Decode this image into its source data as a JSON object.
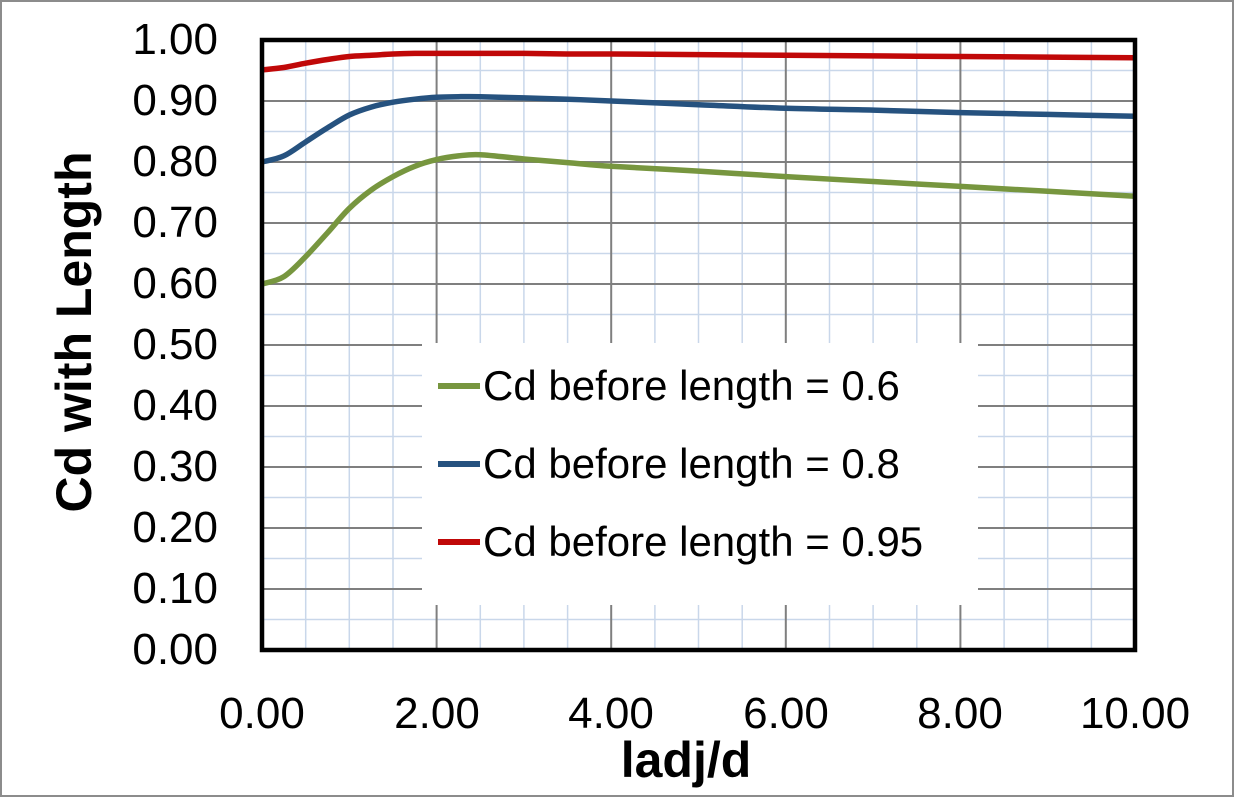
{
  "window": {
    "background": "#ffffff",
    "outer_border_color": "#8c8c8c"
  },
  "chart_data": {
    "type": "line",
    "title": "",
    "xlabel": "ladj/d",
    "ylabel": "Cd with Length",
    "xlim": [
      0,
      10
    ],
    "ylim": [
      0.0,
      1.0
    ],
    "x_major_step": 2.0,
    "x_minor_step": 0.5,
    "y_major_step": 0.1,
    "y_minor_step": 0.05,
    "x_tick_labels": [
      "0.00",
      "2.00",
      "4.00",
      "6.00",
      "8.00",
      "10.00"
    ],
    "y_tick_labels": [
      "0.00",
      "0.10",
      "0.20",
      "0.30",
      "0.40",
      "0.50",
      "0.60",
      "0.70",
      "0.80",
      "0.90",
      "1.00"
    ],
    "grid": {
      "major_color": "#7f7f7f",
      "minor_color": "#c9d7ea",
      "major_width": 2,
      "minor_width": 1.5
    },
    "plot_border_color": "#000000",
    "legend_position": "center",
    "legend_background": "#ffffff",
    "x": [
      0,
      0.25,
      0.5,
      0.75,
      1,
      1.25,
      1.5,
      1.75,
      2,
      2.25,
      2.5,
      3,
      3.5,
      4,
      5,
      6,
      7,
      8,
      9,
      10
    ],
    "series": [
      {
        "name": "Cd before length = 0.6",
        "color": "#77963f",
        "values": [
          0.6,
          0.612,
          0.645,
          0.684,
          0.724,
          0.754,
          0.776,
          0.793,
          0.804,
          0.81,
          0.812,
          0.805,
          0.799,
          0.793,
          0.785,
          0.776,
          0.768,
          0.76,
          0.752,
          0.744
        ]
      },
      {
        "name": "Cd before length = 0.8",
        "color": "#26527f",
        "values": [
          0.8,
          0.81,
          0.833,
          0.856,
          0.877,
          0.89,
          0.898,
          0.903,
          0.906,
          0.907,
          0.907,
          0.905,
          0.903,
          0.9,
          0.894,
          0.888,
          0.885,
          0.881,
          0.878,
          0.875
        ]
      },
      {
        "name": "Cd before length = 0.95",
        "color": "#c00808",
        "values": [
          0.951,
          0.955,
          0.962,
          0.968,
          0.973,
          0.975,
          0.977,
          0.978,
          0.978,
          0.978,
          0.978,
          0.978,
          0.977,
          0.977,
          0.976,
          0.975,
          0.974,
          0.973,
          0.972,
          0.971
        ]
      }
    ]
  }
}
